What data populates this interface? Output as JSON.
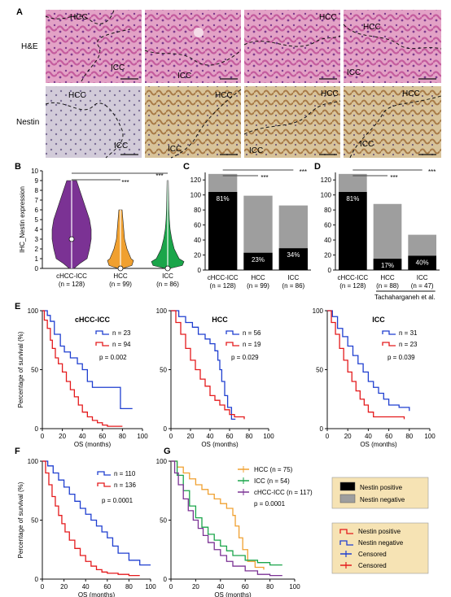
{
  "panel_letters": [
    "A",
    "B",
    "C",
    "D",
    "E",
    "F",
    "G"
  ],
  "panelA": {
    "row_labels": [
      "H&E",
      "Nestin"
    ],
    "region_labels": {
      "he": [
        [
          "HCC",
          "ICC"
        ],
        [
          "ICC"
        ],
        [
          "HCC"
        ],
        [
          "HCC",
          "ICC"
        ]
      ],
      "nestin": [
        [
          "HCC",
          "ICC"
        ],
        [
          "HCC",
          "ICC"
        ],
        [
          "HCC",
          "ICC"
        ],
        [
          "HCC",
          "ICC"
        ]
      ]
    },
    "colors": {
      "he_bg": "#e5a3c7",
      "he_tissue": "#c65aa0",
      "nestin_bg": "#d9c49c",
      "nestin_tissue": "#a57845",
      "nestin_first_bg": "#cfc9d9"
    }
  },
  "chart_data": [
    {
      "panel": "B",
      "type": "violin",
      "ylabel": "IHC_Nestin expression",
      "ylim": [
        0,
        10
      ],
      "yticks": [
        0,
        1,
        2,
        3,
        4,
        5,
        6,
        7,
        8,
        9,
        10
      ],
      "categories": [
        "cHCC-ICC",
        "HCC",
        "ICC"
      ],
      "n_labels": [
        "(n = 128)",
        "(n = 99)",
        "(n = 86)"
      ],
      "medians": [
        3,
        0,
        0
      ],
      "max": [
        9,
        6,
        9
      ],
      "colors": [
        "#7b3294",
        "#f0a030",
        "#1aa54a"
      ],
      "significance": [
        "***",
        "***"
      ]
    },
    {
      "panel": "C",
      "type": "bar",
      "ylim": [
        0,
        130
      ],
      "yticks": [
        0,
        20,
        40,
        60,
        80,
        100,
        120
      ],
      "categories": [
        "cHCC-ICC",
        "HCC",
        "ICC"
      ],
      "n_labels": [
        "(n = 128)",
        "(n = 99)",
        "(n = 86)"
      ],
      "totals": [
        128,
        99,
        86
      ],
      "positive": [
        104,
        23,
        29
      ],
      "percent_labels": [
        "81%",
        "23%",
        "34%"
      ],
      "significance": [
        "***",
        "***"
      ]
    },
    {
      "panel": "D",
      "type": "bar",
      "ylim": [
        0,
        130
      ],
      "yticks": [
        0,
        20,
        40,
        60,
        80,
        100,
        120
      ],
      "categories": [
        "cHCC-ICC",
        "HCC",
        "ICC"
      ],
      "n_labels": [
        "(n = 128)",
        "(n = 88)",
        "(n = 47)"
      ],
      "group_label": "Tachaharganeh et al.",
      "totals": [
        128,
        88,
        47
      ],
      "positive": [
        104,
        15,
        19
      ],
      "percent_labels": [
        "81%",
        "17%",
        "40%"
      ],
      "significance": [
        "***",
        "***"
      ]
    },
    {
      "panel": "E",
      "type": "line",
      "title": "cHCC-ICC",
      "ylabel": "Percentage of survival (%)",
      "xlabel": "OS (months)",
      "xlim": [
        0,
        100
      ],
      "ylim": [
        0,
        100
      ],
      "xticks": [
        0,
        20,
        40,
        60,
        80,
        100
      ],
      "yticks": [
        0,
        50,
        100
      ],
      "pvalue": "p = 0.002",
      "series": [
        {
          "name": "n = 23",
          "color": "#1f3fd0",
          "x": [
            0,
            5,
            8,
            12,
            18,
            22,
            28,
            35,
            40,
            45,
            50,
            78,
            78,
            90
          ],
          "y": [
            100,
            96,
            91,
            80,
            70,
            65,
            60,
            55,
            50,
            40,
            35,
            35,
            17,
            17
          ]
        },
        {
          "name": "n = 94",
          "color": "#e41a1c",
          "x": [
            0,
            2,
            5,
            8,
            10,
            13,
            16,
            20,
            24,
            28,
            32,
            36,
            40,
            45,
            50,
            55,
            60,
            65,
            70,
            80
          ],
          "y": [
            100,
            92,
            85,
            75,
            68,
            60,
            55,
            48,
            40,
            33,
            27,
            20,
            14,
            10,
            7,
            5,
            3,
            2,
            2,
            2
          ]
        }
      ]
    },
    {
      "panel": "E",
      "type": "line",
      "title": "HCC",
      "xlabel": "OS (months)",
      "xlim": [
        0,
        100
      ],
      "ylim": [
        0,
        100
      ],
      "xticks": [
        0,
        20,
        40,
        60,
        80,
        100
      ],
      "yticks": [
        0,
        50,
        100
      ],
      "pvalue": "p = 0.029",
      "series": [
        {
          "name": "n = 56",
          "color": "#1f3fd0",
          "x": [
            0,
            8,
            15,
            22,
            28,
            35,
            40,
            45,
            48,
            50,
            52,
            55,
            58,
            62,
            66
          ],
          "y": [
            100,
            95,
            90,
            86,
            80,
            76,
            72,
            66,
            58,
            50,
            40,
            28,
            18,
            8,
            8
          ]
        },
        {
          "name": "n = 19",
          "color": "#e41a1c",
          "x": [
            0,
            5,
            10,
            15,
            20,
            25,
            30,
            35,
            40,
            45,
            50,
            55,
            60,
            65,
            75
          ],
          "y": [
            100,
            90,
            80,
            68,
            58,
            50,
            42,
            36,
            28,
            24,
            20,
            16,
            12,
            10,
            8
          ]
        }
      ]
    },
    {
      "panel": "E",
      "type": "line",
      "title": "ICC",
      "xlabel": "OS (months)",
      "xlim": [
        0,
        100
      ],
      "ylim": [
        0,
        100
      ],
      "xticks": [
        0,
        20,
        40,
        60,
        80,
        100
      ],
      "yticks": [
        0,
        50,
        100
      ],
      "pvalue": "p = 0.039",
      "series": [
        {
          "name": "n = 31",
          "color": "#1f3fd0",
          "x": [
            0,
            5,
            10,
            15,
            20,
            25,
            30,
            35,
            40,
            45,
            50,
            55,
            60,
            70,
            80
          ],
          "y": [
            100,
            95,
            85,
            78,
            70,
            62,
            55,
            48,
            40,
            35,
            30,
            25,
            20,
            18,
            15
          ]
        },
        {
          "name": "n = 23",
          "color": "#e41a1c",
          "x": [
            0,
            4,
            8,
            12,
            16,
            20,
            24,
            28,
            32,
            36,
            40,
            45,
            50,
            60,
            75
          ],
          "y": [
            100,
            90,
            80,
            68,
            58,
            48,
            40,
            32,
            25,
            20,
            14,
            10,
            10,
            10,
            8
          ]
        }
      ]
    },
    {
      "panel": "F",
      "type": "line",
      "ylabel": "Percentage of survival (%)",
      "xlabel": "OS (months)",
      "xlim": [
        0,
        100
      ],
      "ylim": [
        0,
        100
      ],
      "xticks": [
        0,
        20,
        40,
        60,
        80,
        100
      ],
      "yticks": [
        0,
        50,
        100
      ],
      "pvalue": "p = 0.0001",
      "series": [
        {
          "name": "n = 110",
          "color": "#1f3fd0",
          "x": [
            0,
            5,
            10,
            15,
            20,
            25,
            30,
            35,
            40,
            45,
            50,
            55,
            60,
            65,
            70,
            80,
            90,
            100
          ],
          "y": [
            100,
            96,
            90,
            84,
            78,
            72,
            66,
            60,
            55,
            50,
            45,
            40,
            35,
            28,
            22,
            16,
            12,
            12
          ]
        },
        {
          "name": "n = 136",
          "color": "#e41a1c",
          "x": [
            0,
            3,
            6,
            9,
            12,
            15,
            18,
            21,
            25,
            30,
            35,
            40,
            45,
            50,
            55,
            60,
            70,
            80,
            90
          ],
          "y": [
            100,
            90,
            80,
            70,
            62,
            54,
            47,
            40,
            33,
            26,
            20,
            15,
            11,
            8,
            6,
            5,
            4,
            3,
            3
          ]
        }
      ]
    },
    {
      "panel": "G",
      "type": "line",
      "xlabel": "OS (months)",
      "xlim": [
        0,
        100
      ],
      "ylim": [
        0,
        100
      ],
      "xticks": [
        0,
        20,
        40,
        60,
        80,
        100
      ],
      "yticks": [
        0,
        50,
        100
      ],
      "pvalue": "p = 0.0001",
      "series": [
        {
          "name": "HCC (n = 75)",
          "color": "#f0a030",
          "x": [
            0,
            5,
            10,
            15,
            20,
            25,
            30,
            35,
            40,
            45,
            50,
            52,
            55,
            58,
            62,
            68,
            75
          ],
          "y": [
            100,
            95,
            90,
            85,
            80,
            76,
            72,
            68,
            64,
            60,
            54,
            45,
            35,
            25,
            15,
            10,
            8
          ]
        },
        {
          "name": "ICC (n = 54)",
          "color": "#1aa54a",
          "x": [
            0,
            5,
            10,
            15,
            20,
            25,
            30,
            35,
            40,
            45,
            50,
            60,
            70,
            80,
            90
          ],
          "y": [
            100,
            88,
            75,
            62,
            52,
            44,
            38,
            33,
            28,
            24,
            20,
            16,
            14,
            12,
            12
          ]
        },
        {
          "name": "cHCC-ICC (n = 117)",
          "color": "#7b3294",
          "x": [
            0,
            3,
            6,
            10,
            14,
            18,
            22,
            26,
            30,
            35,
            40,
            45,
            50,
            60,
            70,
            80,
            90
          ],
          "y": [
            100,
            90,
            80,
            68,
            58,
            50,
            43,
            37,
            31,
            25,
            20,
            15,
            11,
            7,
            4,
            3,
            3
          ]
        }
      ]
    }
  ],
  "legend_bars": [
    {
      "label": "Nestin positive",
      "color": "#000000"
    },
    {
      "label": "Nestin negative",
      "color": "#9e9e9e"
    }
  ],
  "legend_km": [
    {
      "label": "Nestin positive",
      "color": "#e41a1c",
      "kind": "step"
    },
    {
      "label": "Nestin negative",
      "color": "#1f3fd0",
      "kind": "step"
    },
    {
      "label": "Censored",
      "color": "#1f3fd0",
      "kind": "cross"
    },
    {
      "label": "Censored",
      "color": "#e41a1c",
      "kind": "cross"
    }
  ],
  "legend_bg": "#f6e3b4"
}
